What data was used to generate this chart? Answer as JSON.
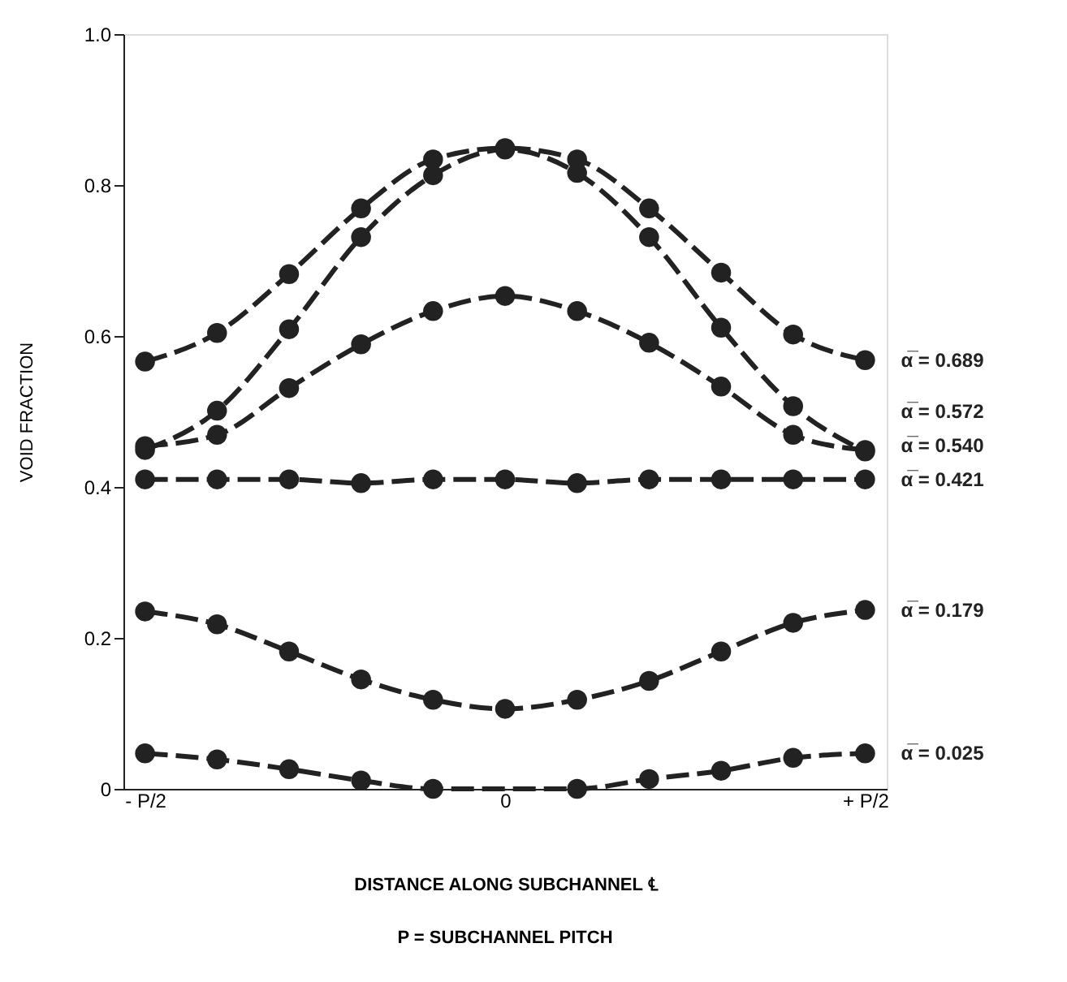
{
  "chart_data": {
    "type": "line",
    "xlabel": "DISTANCE ALONG SUBCHANNEL ℄",
    "ylabel": "VOID FRACTION",
    "annotations": [
      "P = SUBCHANNEL PITCH"
    ],
    "categories": [
      "- P/2",
      null,
      null,
      null,
      null,
      "0",
      null,
      null,
      null,
      null,
      "+ P/2"
    ],
    "series": [
      {
        "name": "α̅ = 0.689",
        "color": "#222222",
        "values": [
          0.566,
          0.604,
          0.682,
          0.769,
          0.834,
          0.849,
          0.834,
          0.769,
          0.684,
          0.602,
          0.568
        ]
      },
      {
        "name": "α̅ = 0.572",
        "color": "#222222",
        "values": [
          0.449,
          0.501,
          0.609,
          0.731,
          0.813,
          0.847,
          0.816,
          0.731,
          0.611,
          0.507,
          0.447
        ]
      },
      {
        "name": "α̅ = 0.540",
        "color": "#222222",
        "values": [
          0.454,
          0.469,
          0.531,
          0.589,
          0.633,
          0.653,
          0.633,
          0.591,
          0.533,
          0.469,
          0.449
        ]
      },
      {
        "name": "α̅ = 0.421",
        "color": "#222222",
        "values": [
          0.41,
          0.41,
          0.41,
          0.405,
          0.41,
          0.41,
          0.405,
          0.41,
          0.41,
          0.41,
          0.41
        ]
      },
      {
        "name": "α̅ = 0.179",
        "color": "#222222",
        "values": [
          0.235,
          0.218,
          0.182,
          0.145,
          0.118,
          0.106,
          0.118,
          0.143,
          0.182,
          0.22,
          0.237
        ]
      },
      {
        "name": "α̅ = 0.025",
        "color": "#222222",
        "values": [
          0.047,
          0.039,
          0.026,
          0.011,
          0.0,
          null,
          0.0,
          0.013,
          0.024,
          0.041,
          0.047
        ]
      }
    ],
    "ylim": [
      0,
      1
    ],
    "yticks": [
      0,
      0.2,
      0.4,
      0.6,
      0.8,
      {
        "value": 1,
        "label": "1.0"
      }
    ],
    "grid": false,
    "legend": false,
    "marker": "circle",
    "line_style": "dashed"
  }
}
